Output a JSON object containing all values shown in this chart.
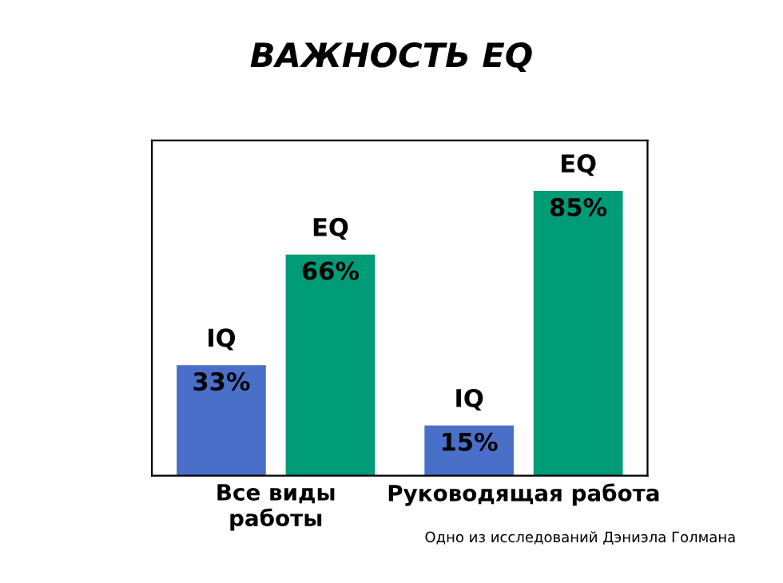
{
  "chart_data": {
    "type": "bar",
    "title": "ВАЖНОСТЬ EQ",
    "categories": [
      "Все виды\nработы",
      "Руководящая работа"
    ],
    "series": [
      {
        "name": "IQ",
        "color": "#4a6fc8",
        "values": [
          33,
          15
        ],
        "value_labels": [
          "33%",
          "15%"
        ]
      },
      {
        "name": "EQ",
        "color": "#009b77",
        "values": [
          66,
          85
        ],
        "value_labels": [
          "66%",
          "85%"
        ]
      }
    ],
    "ylim": [
      0,
      100
    ],
    "tick_labels": "x",
    "legend": false,
    "annotations": [
      "Одно из исследований Дэниэла Голмана"
    ]
  }
}
